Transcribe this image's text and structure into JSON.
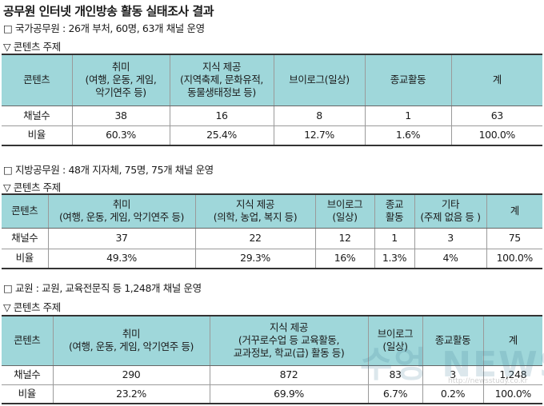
{
  "title": "공무원 인터넷 개인방송 활동 실태조사 결과",
  "sections": [
    {
      "heading": "□ 국가공무원 : 26개 부처, 60명, 63개 채널 운영",
      "subheading": "▽ 콘텐츠 주제",
      "headers": [
        "콘텐츠",
        "취미\n(여행, 운동, 게임,\n악기연주 등)",
        "지식 제공\n(지역축제, 문화유적,\n동물생태정보 등)",
        "브이로그(일상)",
        "종교활동",
        "계"
      ],
      "rows": [
        {
          "label": "채널수",
          "values": [
            "38",
            "16",
            "8",
            "1",
            "63"
          ]
        },
        {
          "label": "비율",
          "values": [
            "60.3%",
            "25.4%",
            "12.7%",
            "1.6%",
            "100.0%"
          ]
        }
      ]
    },
    {
      "heading": "□ 지방공무원 : 48개 지자체, 75명, 75개 채널 운영",
      "subheading": "▽ 콘텐츠 주제",
      "headers": [
        "콘텐츠",
        "취미\n(여행, 운동, 게임, 악기연주 등)",
        "지식 제공\n(의학, 농업, 복지 등)",
        "브이로그\n(일상)",
        "종교\n활동",
        "기타\n(주제 없음 등 )",
        "계"
      ],
      "rows": [
        {
          "label": "채널수",
          "values": [
            "37",
            "22",
            "12",
            "1",
            "3",
            "75"
          ]
        },
        {
          "label": "비율",
          "values": [
            "49.3%",
            "29.3%",
            "16%",
            "1.3%",
            "4%",
            "100.0%"
          ]
        }
      ]
    },
    {
      "heading": "□ 교원 : 교원, 교육전문직 등 1,248개 채널 운영",
      "subheading": "▽ 콘텐츠 주제",
      "headers": [
        "콘텐츠",
        "취미\n(여행, 운동, 게임, 악기연주 등)",
        "지식 제공\n(거꾸로수업 등 교육활동,\n교과정보, 학교(급) 활동 등)",
        "브이로그\n(일상)",
        "종교활동",
        "계"
      ],
      "rows": [
        {
          "label": "채널수",
          "values": [
            "290",
            "872",
            "83",
            "3",
            "1,248"
          ]
        },
        {
          "label": "비율",
          "values": [
            "23.2%",
            "69.9%",
            "6.7%",
            "0.2%",
            "100.0%"
          ]
        }
      ]
    }
  ],
  "watermark": {
    "text": "수엉 NEWS",
    "url": "http://newsstudy.co.kr"
  }
}
